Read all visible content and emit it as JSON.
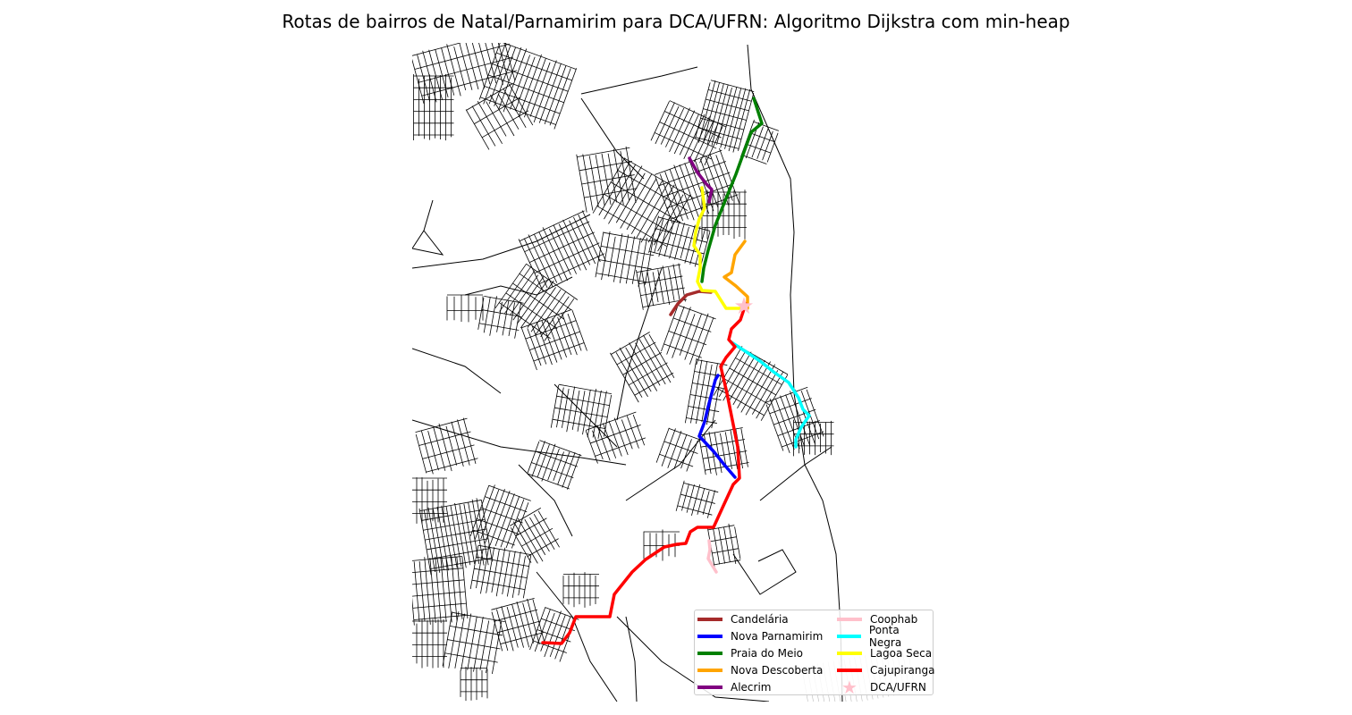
{
  "figure": {
    "title": "Rotas de bairros de Natal/Parnamirim para DCA/UFRN: Algoritmo Dijkstra com min-heap"
  },
  "map": {
    "street_color": "#000000",
    "destination": {
      "name": "DCA/UFRN",
      "marker_color": "#ffc0cb",
      "marker_icon": "star-icon"
    },
    "routes": [
      {
        "name": "Candelária",
        "color": "#a52a2a"
      },
      {
        "name": "Nova Parnamirim",
        "color": "#0000ff"
      },
      {
        "name": "Praia do Meio",
        "color": "#008000"
      },
      {
        "name": "Nova Descoberta",
        "color": "#ffa500"
      },
      {
        "name": "Alecrim",
        "color": "#800080"
      },
      {
        "name": "Coophab",
        "color": "#ffc0cb"
      },
      {
        "name": "Ponta Negra",
        "color": "#00ffff"
      },
      {
        "name": "Lagoa Seca",
        "color": "#ffff00"
      },
      {
        "name": "Cajupiranga",
        "color": "#ff0000"
      }
    ]
  },
  "legend": {
    "placement": "lower-right",
    "items": [
      {
        "label": "Candelária",
        "color": "#a52a2a"
      },
      {
        "label": "Nova Parnamirim",
        "color": "#0000ff"
      },
      {
        "label": "Praia do Meio",
        "color": "#008000"
      },
      {
        "label": "Nova Descoberta",
        "color": "#ffa500"
      },
      {
        "label": "Alecrim",
        "color": "#800080"
      },
      {
        "label": "Coophab",
        "color": "#ffc0cb"
      },
      {
        "label": "Ponta Negra",
        "color": "#00ffff"
      },
      {
        "label": "Lagoa Seca",
        "color": "#ffff00"
      },
      {
        "label": "Cajupiranga",
        "color": "#ff0000"
      },
      {
        "label": "DCA/UFRN",
        "color": "#ffc0cb",
        "marker": "star-icon"
      }
    ]
  }
}
